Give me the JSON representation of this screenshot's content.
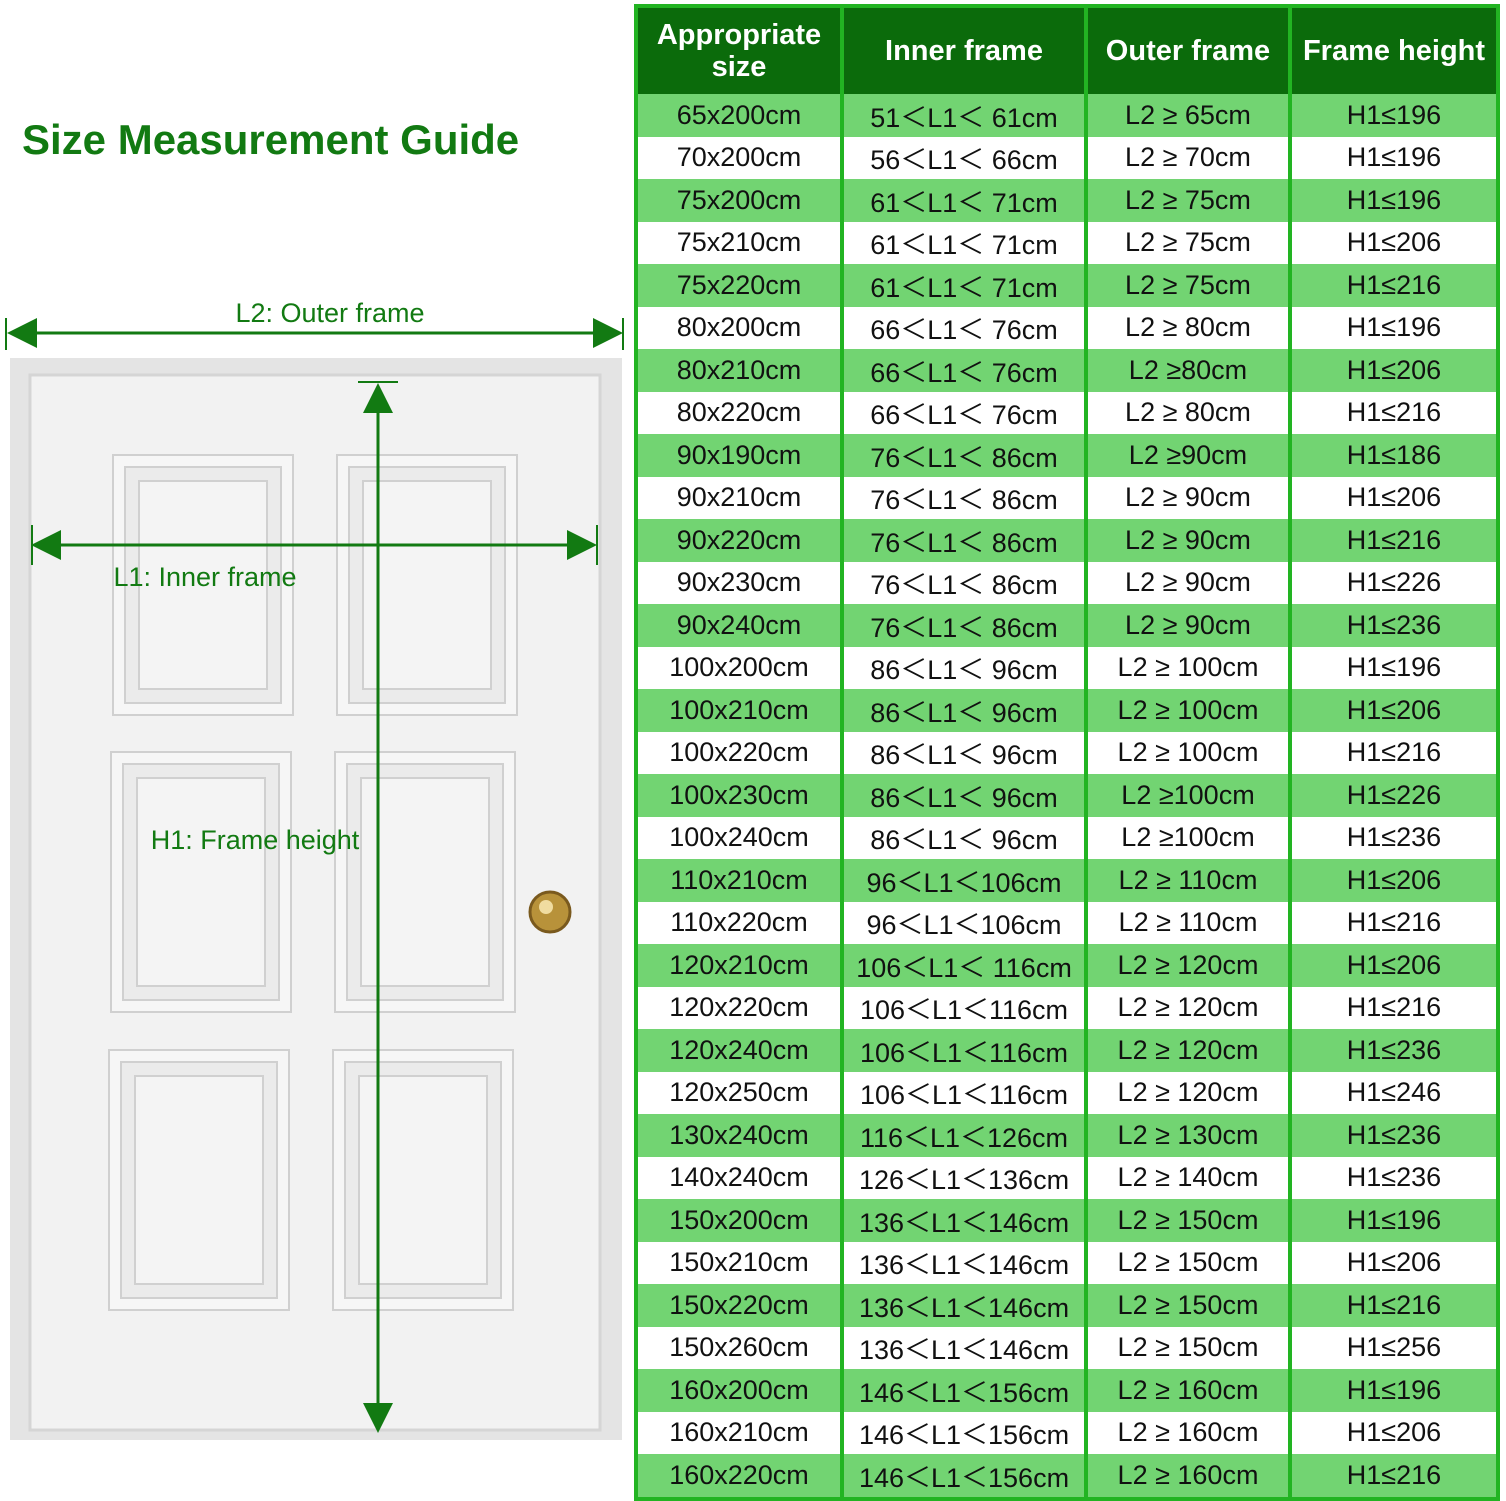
{
  "title": "Size Measurement Guide",
  "labels": {
    "outer": "L2: Outer frame",
    "inner": "L1: Inner frame",
    "height": "H1: Frame height"
  },
  "colors": {
    "header": "#0b6b0b",
    "border": "#22b422",
    "row_alt": "#72d472",
    "title": "#127a12"
  },
  "table": {
    "headers": [
      "Appropriate size",
      "Inner frame",
      "Outer frame",
      "Frame height"
    ],
    "rows": [
      [
        "65x200cm",
        "51＜L1＜ 61cm",
        "L2 ≥ 65cm",
        "H1≤196"
      ],
      [
        "70x200cm",
        "56＜L1＜ 66cm",
        "L2 ≥ 70cm",
        "H1≤196"
      ],
      [
        "75x200cm",
        "61＜L1＜ 71cm",
        "L2 ≥ 75cm",
        "H1≤196"
      ],
      [
        "75x210cm",
        "61＜L1＜ 71cm",
        "L2 ≥ 75cm",
        "H1≤206"
      ],
      [
        "75x220cm",
        "61＜L1＜ 71cm",
        "L2 ≥ 75cm",
        "H1≤216"
      ],
      [
        "80x200cm",
        "66＜L1＜ 76cm",
        "L2 ≥ 80cm",
        "H1≤196"
      ],
      [
        "80x210cm",
        "66＜L1＜ 76cm",
        "L2 ≥80cm",
        "H1≤206"
      ],
      [
        "80x220cm",
        "66＜L1＜ 76cm",
        "L2 ≥ 80cm",
        "H1≤216"
      ],
      [
        "90x190cm",
        "76＜L1＜ 86cm",
        "L2 ≥90cm",
        "H1≤186"
      ],
      [
        "90x210cm",
        "76＜L1＜ 86cm",
        "L2 ≥ 90cm",
        "H1≤206"
      ],
      [
        "90x220cm",
        "76＜L1＜ 86cm",
        "L2 ≥ 90cm",
        "H1≤216"
      ],
      [
        "90x230cm",
        "76＜L1＜ 86cm",
        "L2 ≥ 90cm",
        "H1≤226"
      ],
      [
        "90x240cm",
        "76＜L1＜ 86cm",
        "L2 ≥ 90cm",
        "H1≤236"
      ],
      [
        "100x200cm",
        "86＜L1＜ 96cm",
        "L2 ≥ 100cm",
        "H1≤196"
      ],
      [
        "100x210cm",
        "86＜L1＜ 96cm",
        "L2 ≥ 100cm",
        "H1≤206"
      ],
      [
        "100x220cm",
        "86＜L1＜ 96cm",
        "L2 ≥ 100cm",
        "H1≤216"
      ],
      [
        "100x230cm",
        "86＜L1＜ 96cm",
        "L2 ≥100cm",
        "H1≤226"
      ],
      [
        "100x240cm",
        "86＜L1＜ 96cm",
        "L2 ≥100cm",
        "H1≤236"
      ],
      [
        "110x210cm",
        "96＜L1＜106cm",
        "L2 ≥ 110cm",
        "H1≤206"
      ],
      [
        "110x220cm",
        "96＜L1＜106cm",
        "L2 ≥ 110cm",
        "H1≤216"
      ],
      [
        "120x210cm",
        "106＜L1＜ 116cm",
        "L2 ≥ 120cm",
        "H1≤206"
      ],
      [
        "120x220cm",
        "106＜L1＜116cm",
        "L2 ≥ 120cm",
        "H1≤216"
      ],
      [
        "120x240cm",
        "106＜L1＜116cm",
        "L2 ≥ 120cm",
        "H1≤236"
      ],
      [
        "120x250cm",
        "106＜L1＜116cm",
        "L2 ≥ 120cm",
        "H1≤246"
      ],
      [
        "130x240cm",
        "116＜L1＜126cm",
        "L2 ≥ 130cm",
        "H1≤236"
      ],
      [
        "140x240cm",
        "126＜L1＜136cm",
        "L2 ≥ 140cm",
        "H1≤236"
      ],
      [
        "150x200cm",
        "136＜L1＜146cm",
        "L2 ≥ 150cm",
        "H1≤196"
      ],
      [
        "150x210cm",
        "136＜L1＜146cm",
        "L2 ≥ 150cm",
        "H1≤206"
      ],
      [
        "150x220cm",
        "136＜L1＜146cm",
        "L2 ≥ 150cm",
        "H1≤216"
      ],
      [
        "150x260cm",
        "136＜L1＜146cm",
        "L2 ≥ 150cm",
        "H1≤256"
      ],
      [
        "160x200cm",
        "146＜L1＜156cm",
        "L2 ≥ 160cm",
        "H1≤196"
      ],
      [
        "160x210cm",
        "146＜L1＜156cm",
        "L2 ≥ 160cm",
        "H1≤206"
      ],
      [
        "160x220cm",
        "146＜L1＜156cm",
        "L2 ≥ 160cm",
        "H1≤216"
      ]
    ]
  }
}
